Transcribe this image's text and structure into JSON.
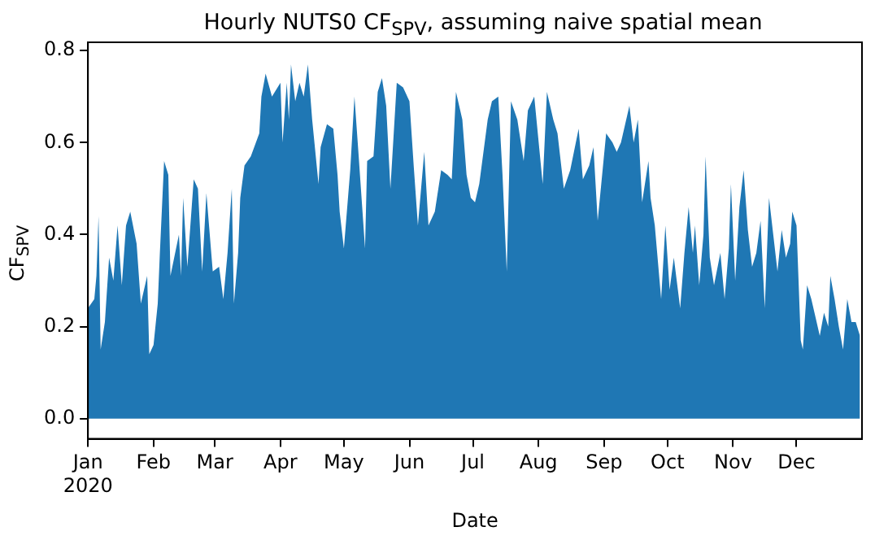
{
  "chart_data": {
    "type": "area",
    "title": "Hourly NUTS0 CF$_{SPV}$, assuming naive spatial mean",
    "xlabel": "Date",
    "ylabel": "CF$_{SPV}$",
    "color": "#1f77b4",
    "grid": false,
    "legend": false,
    "x": [
      "2020-01-01",
      "2020-01-04",
      "2020-01-05",
      "2020-01-06",
      "2020-01-07",
      "2020-01-09",
      "2020-01-11",
      "2020-01-13",
      "2020-01-15",
      "2020-01-17",
      "2020-01-19",
      "2020-01-21",
      "2020-01-24",
      "2020-01-26",
      "2020-01-29",
      "2020-01-30",
      "2020-02-01",
      "2020-02-03",
      "2020-02-04",
      "2020-02-06",
      "2020-02-08",
      "2020-02-09",
      "2020-02-13",
      "2020-02-14",
      "2020-02-15",
      "2020-02-17",
      "2020-02-20",
      "2020-02-22",
      "2020-02-24",
      "2020-02-26",
      "2020-02-29",
      "2020-03-03",
      "2020-03-05",
      "2020-03-07",
      "2020-03-09",
      "2020-03-10",
      "2020-03-12",
      "2020-03-13",
      "2020-03-15",
      "2020-03-18",
      "2020-03-22",
      "2020-03-23",
      "2020-03-25",
      "2020-03-28",
      "2020-04-01",
      "2020-04-02",
      "2020-04-04",
      "2020-04-05",
      "2020-04-06",
      "2020-04-08",
      "2020-04-10",
      "2020-04-12",
      "2020-04-14",
      "2020-04-16",
      "2020-04-19",
      "2020-04-20",
      "2020-04-23",
      "2020-04-26",
      "2020-04-28",
      "2020-04-29",
      "2020-05-01",
      "2020-05-04",
      "2020-05-06",
      "2020-05-08",
      "2020-05-11",
      "2020-05-12",
      "2020-05-15",
      "2020-05-17",
      "2020-05-19",
      "2020-05-21",
      "2020-05-23",
      "2020-05-26",
      "2020-05-29",
      "2020-06-01",
      "2020-06-03",
      "2020-06-05",
      "2020-06-08",
      "2020-06-10",
      "2020-06-13",
      "2020-06-16",
      "2020-06-19",
      "2020-06-21",
      "2020-06-23",
      "2020-06-26",
      "2020-06-28",
      "2020-06-30",
      "2020-07-02",
      "2020-07-04",
      "2020-07-08",
      "2020-07-10",
      "2020-07-13",
      "2020-07-15",
      "2020-07-17",
      "2020-07-19",
      "2020-07-22",
      "2020-07-25",
      "2020-07-27",
      "2020-07-30",
      "2020-08-03",
      "2020-08-05",
      "2020-08-08",
      "2020-08-10",
      "2020-08-13",
      "2020-08-16",
      "2020-08-20",
      "2020-08-22",
      "2020-08-25",
      "2020-08-27",
      "2020-08-29",
      "2020-09-02",
      "2020-09-05",
      "2020-09-07",
      "2020-09-09",
      "2020-09-13",
      "2020-09-15",
      "2020-09-17",
      "2020-09-19",
      "2020-09-22",
      "2020-09-23",
      "2020-09-25",
      "2020-09-28",
      "2020-09-30",
      "2020-10-02",
      "2020-10-04",
      "2020-10-07",
      "2020-10-09",
      "2020-10-11",
      "2020-10-13",
      "2020-10-14",
      "2020-10-16",
      "2020-10-18",
      "2020-10-19",
      "2020-10-21",
      "2020-10-23",
      "2020-10-26",
      "2020-10-28",
      "2020-10-30",
      "2020-10-31",
      "2020-11-02",
      "2020-11-04",
      "2020-11-06",
      "2020-11-08",
      "2020-11-10",
      "2020-11-12",
      "2020-11-14",
      "2020-11-16",
      "2020-11-18",
      "2020-11-20",
      "2020-11-22",
      "2020-11-24",
      "2020-11-26",
      "2020-11-28",
      "2020-11-29",
      "2020-12-01",
      "2020-12-03",
      "2020-12-04",
      "2020-12-06",
      "2020-12-08",
      "2020-12-10",
      "2020-12-12",
      "2020-12-14",
      "2020-12-16",
      "2020-12-17",
      "2020-12-19",
      "2020-12-21",
      "2020-12-23",
      "2020-12-25",
      "2020-12-27",
      "2020-12-29",
      "2020-12-31"
    ],
    "values": [
      0.24,
      0.26,
      0.31,
      0.44,
      0.15,
      0.21,
      0.35,
      0.3,
      0.42,
      0.29,
      0.42,
      0.45,
      0.38,
      0.25,
      0.31,
      0.14,
      0.16,
      0.25,
      0.36,
      0.56,
      0.53,
      0.31,
      0.4,
      0.31,
      0.48,
      0.33,
      0.52,
      0.5,
      0.32,
      0.49,
      0.32,
      0.33,
      0.26,
      0.36,
      0.5,
      0.25,
      0.36,
      0.48,
      0.55,
      0.57,
      0.62,
      0.7,
      0.75,
      0.7,
      0.73,
      0.6,
      0.73,
      0.65,
      0.77,
      0.69,
      0.73,
      0.7,
      0.77,
      0.65,
      0.51,
      0.59,
      0.64,
      0.63,
      0.53,
      0.45,
      0.37,
      0.54,
      0.7,
      0.57,
      0.37,
      0.56,
      0.57,
      0.71,
      0.74,
      0.68,
      0.5,
      0.73,
      0.72,
      0.69,
      0.55,
      0.42,
      0.58,
      0.42,
      0.45,
      0.54,
      0.53,
      0.52,
      0.71,
      0.65,
      0.53,
      0.48,
      0.47,
      0.51,
      0.65,
      0.69,
      0.7,
      0.53,
      0.32,
      0.69,
      0.65,
      0.56,
      0.67,
      0.7,
      0.51,
      0.71,
      0.65,
      0.62,
      0.5,
      0.54,
      0.63,
      0.52,
      0.55,
      0.59,
      0.43,
      0.62,
      0.6,
      0.58,
      0.6,
      0.68,
      0.6,
      0.65,
      0.47,
      0.56,
      0.48,
      0.42,
      0.26,
      0.42,
      0.28,
      0.35,
      0.24,
      0.36,
      0.46,
      0.36,
      0.42,
      0.29,
      0.4,
      0.57,
      0.35,
      0.29,
      0.36,
      0.26,
      0.37,
      0.51,
      0.3,
      0.46,
      0.54,
      0.41,
      0.33,
      0.36,
      0.43,
      0.24,
      0.48,
      0.4,
      0.32,
      0.41,
      0.35,
      0.38,
      0.45,
      0.42,
      0.17,
      0.15,
      0.29,
      0.26,
      0.22,
      0.18,
      0.23,
      0.2,
      0.31,
      0.26,
      0.2,
      0.15,
      0.26,
      0.21,
      0.21,
      0.18
    ],
    "xlim": [
      "2020-01-01",
      "2020-12-31T23:00"
    ],
    "xticks": [
      {
        "value": "2020-01-01",
        "label": "Jan\n2020"
      },
      {
        "value": "2020-02-01",
        "label": "Feb"
      },
      {
        "value": "2020-03-01",
        "label": "Mar"
      },
      {
        "value": "2020-04-01",
        "label": "Apr"
      },
      {
        "value": "2020-05-01",
        "label": "May"
      },
      {
        "value": "2020-06-01",
        "label": "Jun"
      },
      {
        "value": "2020-07-01",
        "label": "Jul"
      },
      {
        "value": "2020-08-01",
        "label": "Aug"
      },
      {
        "value": "2020-09-01",
        "label": "Sep"
      },
      {
        "value": "2020-10-01",
        "label": "Oct"
      },
      {
        "value": "2020-11-01",
        "label": "Nov"
      },
      {
        "value": "2020-12-01",
        "label": "Dec"
      }
    ],
    "ylim": [
      -0.044,
      0.818
    ],
    "yticks": [
      {
        "value": 0,
        "label": "0.0"
      },
      0.2,
      0.4,
      0.6,
      0.8
    ]
  }
}
